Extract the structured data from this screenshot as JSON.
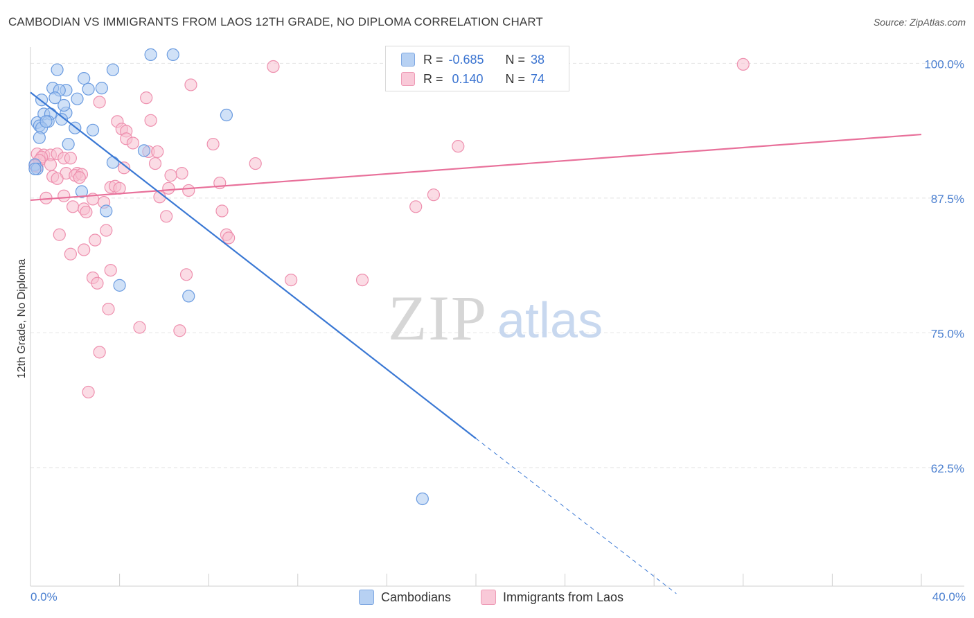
{
  "title": "CAMBODIAN VS IMMIGRANTS FROM LAOS 12TH GRADE, NO DIPLOMA CORRELATION CHART",
  "source": "Source: ZipAtlas.com",
  "watermark": {
    "zip": "ZIP",
    "atlas": "atlas"
  },
  "legend": {
    "rows": [
      {
        "r_label": "R =",
        "r_value": "-0.685",
        "n_label": "N =",
        "n_value": "38"
      },
      {
        "r_label": "R =",
        "r_value": " 0.140",
        "n_label": "N =",
        "n_value": "74"
      }
    ]
  },
  "bottom_legend": {
    "series1": "Cambodians",
    "series2": "Immigrants from Laos"
  },
  "colors": {
    "blue_fill": "#a9c8f0",
    "blue_stroke": "#6a9be0",
    "blue_line": "#3a78d4",
    "pink_fill": "#f7bfd0",
    "pink_stroke": "#ee8fae",
    "pink_line": "#e8709a",
    "tick_text": "#4a7fd0",
    "grid": "#e3e3e3"
  },
  "chart_data": {
    "type": "scatter",
    "title": "CAMBODIAN VS IMMIGRANTS FROM LAOS 12TH GRADE, NO DIPLOMA CORRELATION CHART",
    "xlabel": "",
    "ylabel": "12th Grade, No Diploma",
    "xlim": [
      0,
      40
    ],
    "ylim": [
      51.5,
      101.5
    ],
    "x_tick_labels": [
      "0.0%",
      "40.0%"
    ],
    "y_ticks": [
      100.0,
      87.5,
      75.0,
      62.5
    ],
    "y_tick_labels": [
      "100.0%",
      "87.5%",
      "75.0%",
      "62.5%"
    ],
    "grid": true,
    "legend_position": "top-center",
    "series": [
      {
        "name": "Cambodians",
        "r": -0.685,
        "n": 38,
        "trend": {
          "x": [
            0.0,
            20.0
          ],
          "y": [
            97.3,
            65.2
          ],
          "dashed_to": [
            29.0,
            50.8
          ]
        },
        "points": [
          [
            5.4,
            100.8
          ],
          [
            6.4,
            100.8
          ],
          [
            1.2,
            99.4
          ],
          [
            3.7,
            99.4
          ],
          [
            2.4,
            98.6
          ],
          [
            1.0,
            97.7
          ],
          [
            1.6,
            97.5
          ],
          [
            1.3,
            97.5
          ],
          [
            2.6,
            97.6
          ],
          [
            3.2,
            97.7
          ],
          [
            0.5,
            96.6
          ],
          [
            1.1,
            96.8
          ],
          [
            2.1,
            96.7
          ],
          [
            0.6,
            95.3
          ],
          [
            0.9,
            95.3
          ],
          [
            1.6,
            95.4
          ],
          [
            8.8,
            95.2
          ],
          [
            0.3,
            94.5
          ],
          [
            0.8,
            94.6
          ],
          [
            1.4,
            94.8
          ],
          [
            0.4,
            94.2
          ],
          [
            2.0,
            94.0
          ],
          [
            2.8,
            93.8
          ],
          [
            0.5,
            94.0
          ],
          [
            1.7,
            92.5
          ],
          [
            5.1,
            91.9
          ],
          [
            3.7,
            90.8
          ],
          [
            0.2,
            90.6
          ],
          [
            0.3,
            90.2
          ],
          [
            0.2,
            90.2
          ],
          [
            2.3,
            88.1
          ],
          [
            3.4,
            86.3
          ],
          [
            4.0,
            79.4
          ],
          [
            7.1,
            78.4
          ],
          [
            17.6,
            59.6
          ],
          [
            0.7,
            94.6
          ],
          [
            1.5,
            96.1
          ],
          [
            0.4,
            93.1
          ]
        ]
      },
      {
        "name": "Immigrants from Laos",
        "r": 0.14,
        "n": 74,
        "trend": {
          "x": [
            0.0,
            40.0
          ],
          "y": [
            87.3,
            93.4
          ]
        },
        "points": [
          [
            10.9,
            99.7
          ],
          [
            32.0,
            99.9
          ],
          [
            7.2,
            98.0
          ],
          [
            5.2,
            96.8
          ],
          [
            3.1,
            96.4
          ],
          [
            3.9,
            94.6
          ],
          [
            5.4,
            94.7
          ],
          [
            4.1,
            93.9
          ],
          [
            4.3,
            93.7
          ],
          [
            4.3,
            93.0
          ],
          [
            4.6,
            92.6
          ],
          [
            8.2,
            92.5
          ],
          [
            19.2,
            92.3
          ],
          [
            5.3,
            91.8
          ],
          [
            5.7,
            91.8
          ],
          [
            0.3,
            91.6
          ],
          [
            0.6,
            91.5
          ],
          [
            0.9,
            91.5
          ],
          [
            1.2,
            91.6
          ],
          [
            0.5,
            91.3
          ],
          [
            1.5,
            91.2
          ],
          [
            0.4,
            91.0
          ],
          [
            1.8,
            91.2
          ],
          [
            5.6,
            90.7
          ],
          [
            10.1,
            90.7
          ],
          [
            0.9,
            90.6
          ],
          [
            0.3,
            90.4
          ],
          [
            0.2,
            90.5
          ],
          [
            4.2,
            90.3
          ],
          [
            6.8,
            89.8
          ],
          [
            1.6,
            89.8
          ],
          [
            2.1,
            89.8
          ],
          [
            2.0,
            89.6
          ],
          [
            2.3,
            89.7
          ],
          [
            6.3,
            89.6
          ],
          [
            1.0,
            89.5
          ],
          [
            1.2,
            89.3
          ],
          [
            2.2,
            89.4
          ],
          [
            8.5,
            88.9
          ],
          [
            3.6,
            88.5
          ],
          [
            3.8,
            88.6
          ],
          [
            4.0,
            88.4
          ],
          [
            6.2,
            88.4
          ],
          [
            7.1,
            88.2
          ],
          [
            1.5,
            87.7
          ],
          [
            0.7,
            87.5
          ],
          [
            5.8,
            87.6
          ],
          [
            2.8,
            87.4
          ],
          [
            18.1,
            87.8
          ],
          [
            3.3,
            87.1
          ],
          [
            1.9,
            86.7
          ],
          [
            2.4,
            86.5
          ],
          [
            2.5,
            86.2
          ],
          [
            8.6,
            86.3
          ],
          [
            17.3,
            86.7
          ],
          [
            6.1,
            85.8
          ],
          [
            3.4,
            84.5
          ],
          [
            1.3,
            84.1
          ],
          [
            8.8,
            84.1
          ],
          [
            8.9,
            83.8
          ],
          [
            2.9,
            83.6
          ],
          [
            2.4,
            82.7
          ],
          [
            1.8,
            82.3
          ],
          [
            3.6,
            80.8
          ],
          [
            7.0,
            80.4
          ],
          [
            2.8,
            80.1
          ],
          [
            3.0,
            79.6
          ],
          [
            11.7,
            79.9
          ],
          [
            14.9,
            79.9
          ],
          [
            3.5,
            77.2
          ],
          [
            4.9,
            75.5
          ],
          [
            6.7,
            75.2
          ],
          [
            3.1,
            73.2
          ],
          [
            2.6,
            69.5
          ]
        ]
      }
    ]
  }
}
